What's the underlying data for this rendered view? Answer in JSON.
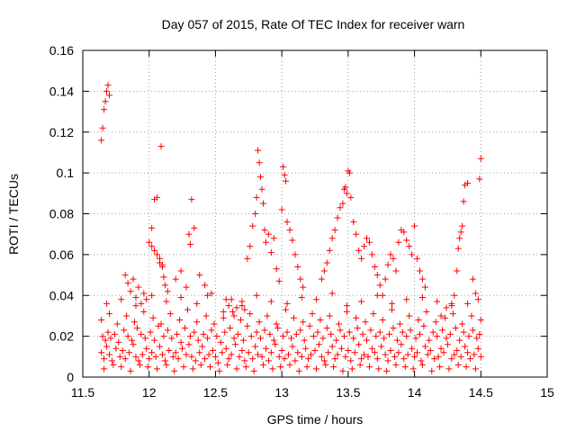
{
  "chart_data": {
    "type": "scatter",
    "title": "Day 057 of 2015, Rate Of TEC Index for receiver warn",
    "xlabel": "GPS time / hours",
    "ylabel": "ROTI / TECUs",
    "xlim": [
      11.5,
      15
    ],
    "ylim": [
      0,
      0.16
    ],
    "xticks": [
      11.5,
      12,
      12.5,
      13,
      13.5,
      14,
      14.5,
      15
    ],
    "xtick_labels": [
      "11.5",
      "12",
      "12.5",
      "13",
      "13.5",
      "14",
      "14.5",
      "15"
    ],
    "yticks": [
      0,
      0.02,
      0.04,
      0.06,
      0.08,
      0.1,
      0.12,
      0.14,
      0.16
    ],
    "ytick_labels": [
      "0",
      "0.02",
      "0.04",
      "0.06",
      "0.08",
      "0.1",
      "0.12",
      "0.14",
      "0.16"
    ],
    "grid": true,
    "marker": "+",
    "series": [
      {
        "name": "ROTI",
        "color": "#ff0000",
        "x": [
          11.64,
          11.66,
          11.68,
          11.7,
          11.72,
          11.75,
          11.78,
          11.8,
          11.82,
          11.85,
          11.88,
          11.9,
          11.92,
          11.95,
          11.98,
          12.0,
          12.02,
          12.05,
          12.08,
          12.1,
          12.12,
          12.15,
          12.18,
          12.2,
          12.22,
          12.25,
          12.28,
          12.3,
          12.32,
          12.35,
          12.38,
          12.4,
          12.42,
          12.45,
          12.48,
          12.5,
          12.52,
          12.55,
          12.58,
          12.6,
          12.62,
          12.65,
          12.68,
          12.7,
          12.72,
          12.75,
          12.78,
          12.8,
          12.82,
          12.85,
          12.88,
          12.9,
          12.92,
          12.95,
          12.98,
          13.0,
          13.02,
          13.05,
          13.08,
          13.1,
          13.12,
          13.15,
          13.18,
          13.2,
          13.22,
          13.25,
          13.28,
          13.3,
          13.32,
          13.35,
          13.38,
          13.4,
          13.42,
          13.45,
          13.48,
          13.5,
          13.52,
          13.55,
          13.58,
          13.6,
          13.62,
          13.65,
          13.68,
          13.7,
          13.72,
          13.75,
          13.78,
          13.8,
          13.82,
          13.85,
          13.88,
          13.9,
          13.92,
          13.95,
          13.98,
          14.0,
          14.02,
          14.05,
          14.08,
          14.1,
          14.12,
          14.15,
          14.18,
          14.2,
          14.22,
          14.25,
          14.28,
          14.3,
          14.32,
          14.35,
          14.38,
          14.4,
          14.42,
          14.45,
          14.48,
          14.5,
          11.65,
          11.67,
          11.69,
          11.71,
          11.74,
          11.77,
          11.81,
          11.84,
          11.87,
          11.91,
          11.94,
          11.97,
          12.01,
          12.04,
          12.07,
          12.11,
          12.14,
          12.17,
          12.21,
          12.24,
          12.27,
          12.31,
          12.34,
          12.37,
          12.41,
          12.44,
          12.47,
          12.51,
          12.54,
          12.57,
          12.61,
          12.64,
          12.67,
          12.71,
          12.74,
          12.77,
          12.81,
          12.84,
          12.87,
          12.91,
          12.94,
          12.97,
          13.01,
          13.04,
          13.07,
          13.11,
          13.14,
          13.17,
          13.21,
          13.24,
          13.27,
          13.31,
          13.34,
          13.37,
          13.41,
          13.44,
          13.47,
          13.51,
          13.54,
          13.57,
          13.61,
          13.64,
          13.67,
          13.71,
          13.74,
          13.77,
          13.81,
          13.84,
          13.87,
          13.91,
          13.94,
          13.97,
          14.01,
          14.04,
          14.07,
          14.11,
          14.14,
          14.17,
          14.21,
          14.24,
          14.27,
          14.31,
          14.34,
          14.37,
          14.41,
          14.44,
          14.47,
          14.49,
          11.64,
          11.7,
          11.76,
          11.83,
          11.89,
          11.96,
          12.03,
          12.09,
          12.16,
          12.23,
          12.29,
          12.36,
          12.43,
          12.49,
          12.56,
          12.63,
          12.69,
          12.76,
          12.83,
          12.89,
          12.96,
          13.03,
          13.09,
          13.16,
          13.23,
          13.29,
          13.36,
          13.43,
          13.49,
          13.56,
          13.63,
          13.69,
          13.76,
          13.83,
          13.89,
          13.96,
          14.03,
          14.09,
          14.16,
          14.23,
          14.29,
          14.36,
          14.43,
          14.5,
          11.66,
          11.73,
          11.79,
          11.86,
          11.93,
          11.99,
          12.06,
          12.13,
          12.19,
          12.26,
          12.33,
          12.39,
          12.46,
          12.53,
          12.59,
          12.66,
          12.73,
          12.79,
          12.86,
          12.93,
          12.99,
          13.06,
          13.13,
          13.19,
          13.26,
          13.33,
          13.39,
          13.46,
          13.53,
          13.59,
          13.66,
          13.73,
          13.79,
          13.86,
          13.93,
          13.99,
          14.06,
          14.13,
          14.19,
          14.26,
          14.33,
          14.39,
          14.46,
          11.68,
          11.79,
          11.9,
          12.02,
          12.13,
          12.24,
          12.36,
          12.47,
          12.58,
          12.7,
          12.81,
          12.92,
          13.04,
          13.15,
          13.26,
          13.38,
          13.49,
          13.6,
          13.72,
          13.83,
          13.94,
          14.06,
          14.17,
          14.28,
          14.4,
          11.64,
          11.65,
          11.66,
          11.67,
          11.68,
          11.69,
          11.7,
          11.82,
          11.84,
          11.86,
          11.88,
          11.9,
          11.92,
          11.94,
          11.96,
          11.98,
          12.0,
          12.02,
          12.04,
          12.06,
          12.08,
          12.1,
          12.02,
          12.04,
          12.06,
          12.08,
          12.09,
          12.1,
          12.11,
          12.12,
          12.14,
          12.2,
          12.24,
          12.28,
          12.3,
          12.31,
          12.32,
          12.34,
          12.38,
          12.42,
          12.44,
          12.56,
          12.6,
          12.62,
          12.64,
          12.66,
          12.7,
          12.72,
          12.74,
          12.76,
          12.78,
          12.8,
          12.81,
          12.82,
          12.83,
          12.84,
          12.85,
          12.86,
          12.87,
          12.88,
          12.9,
          12.92,
          12.94,
          12.96,
          12.98,
          13.0,
          13.01,
          13.02,
          13.03,
          13.04,
          13.06,
          13.08,
          13.1,
          13.12,
          13.14,
          13.16,
          13.3,
          13.32,
          13.34,
          13.36,
          13.38,
          13.4,
          13.42,
          13.44,
          13.46,
          13.47,
          13.48,
          13.49,
          13.5,
          13.51,
          13.52,
          13.54,
          13.56,
          13.58,
          13.6,
          13.62,
          13.64,
          13.66,
          13.68,
          13.7,
          13.72,
          13.74,
          13.76,
          13.78,
          13.8,
          13.82,
          13.84,
          13.86,
          13.88,
          13.9,
          13.92,
          13.94,
          13.96,
          13.98,
          14.0,
          14.02,
          14.04,
          14.06,
          14.08,
          14.2,
          14.24,
          14.28,
          14.3,
          14.32,
          14.33,
          14.34,
          14.35,
          14.36,
          14.37,
          14.38,
          14.4,
          14.44,
          14.46,
          14.48,
          14.49,
          14.5
        ],
        "y": [
          0.012,
          0.009,
          0.015,
          0.011,
          0.008,
          0.014,
          0.01,
          0.013,
          0.009,
          0.012,
          0.016,
          0.01,
          0.008,
          0.011,
          0.014,
          0.009,
          0.012,
          0.01,
          0.015,
          0.011,
          0.008,
          0.013,
          0.01,
          0.012,
          0.009,
          0.014,
          0.011,
          0.016,
          0.01,
          0.008,
          0.012,
          0.015,
          0.009,
          0.011,
          0.013,
          0.01,
          0.007,
          0.012,
          0.014,
          0.009,
          0.011,
          0.016,
          0.01,
          0.013,
          0.008,
          0.012,
          0.009,
          0.015,
          0.011,
          0.01,
          0.014,
          0.008,
          0.012,
          0.016,
          0.01,
          0.013,
          0.009,
          0.011,
          0.015,
          0.008,
          0.012,
          0.01,
          0.014,
          0.009,
          0.011,
          0.013,
          0.016,
          0.01,
          0.008,
          0.012,
          0.015,
          0.009,
          0.011,
          0.014,
          0.01,
          0.013,
          0.008,
          0.012,
          0.016,
          0.009,
          0.011,
          0.01,
          0.014,
          0.012,
          0.009,
          0.015,
          0.011,
          0.008,
          0.013,
          0.01,
          0.012,
          0.016,
          0.009,
          0.011,
          0.014,
          0.01,
          0.012,
          0.008,
          0.015,
          0.011,
          0.013,
          0.009,
          0.01,
          0.014,
          0.012,
          0.016,
          0.009,
          0.011,
          0.013,
          0.01,
          0.015,
          0.012,
          0.009,
          0.011,
          0.014,
          0.01,
          0.02,
          0.018,
          0.022,
          0.019,
          0.021,
          0.017,
          0.023,
          0.02,
          0.018,
          0.024,
          0.021,
          0.019,
          0.022,
          0.018,
          0.025,
          0.02,
          0.023,
          0.019,
          0.021,
          0.017,
          0.024,
          0.02,
          0.022,
          0.018,
          0.021,
          0.019,
          0.023,
          0.02,
          0.017,
          0.022,
          0.024,
          0.019,
          0.021,
          0.018,
          0.025,
          0.02,
          0.022,
          0.019,
          0.023,
          0.021,
          0.018,
          0.024,
          0.02,
          0.022,
          0.019,
          0.021,
          0.023,
          0.018,
          0.025,
          0.02,
          0.022,
          0.019,
          0.024,
          0.021,
          0.018,
          0.023,
          0.02,
          0.022,
          0.019,
          0.024,
          0.021,
          0.018,
          0.023,
          0.02,
          0.022,
          0.019,
          0.021,
          0.024,
          0.018,
          0.022,
          0.02,
          0.023,
          0.019,
          0.021,
          0.025,
          0.018,
          0.022,
          0.02,
          0.023,
          0.019,
          0.021,
          0.024,
          0.018,
          0.022,
          0.02,
          0.023,
          0.019,
          0.021,
          0.028,
          0.031,
          0.026,
          0.03,
          0.027,
          0.032,
          0.029,
          0.026,
          0.031,
          0.028,
          0.033,
          0.027,
          0.03,
          0.026,
          0.029,
          0.032,
          0.028,
          0.031,
          0.027,
          0.03,
          0.026,
          0.033,
          0.029,
          0.027,
          0.031,
          0.028,
          0.03,
          0.026,
          0.032,
          0.029,
          0.027,
          0.031,
          0.028,
          0.033,
          0.026,
          0.03,
          0.028,
          0.032,
          0.027,
          0.029,
          0.031,
          0.026,
          0.03,
          0.028,
          0.004,
          0.006,
          0.005,
          0.003,
          0.006,
          0.005,
          0.004,
          0.006,
          0.003,
          0.005,
          0.004,
          0.006,
          0.005,
          0.003,
          0.006,
          0.004,
          0.005,
          0.003,
          0.006,
          0.004,
          0.005,
          0.006,
          0.003,
          0.005,
          0.004,
          0.006,
          0.005,
          0.003,
          0.004,
          0.006,
          0.005,
          0.004,
          0.003,
          0.006,
          0.005,
          0.004,
          0.006,
          0.003,
          0.005,
          0.004,
          0.006,
          0.005,
          0.004,
          0.036,
          0.038,
          0.035,
          0.04,
          0.037,
          0.039,
          0.036,
          0.041,
          0.038,
          0.035,
          0.04,
          0.037,
          0.036,
          0.039,
          0.038,
          0.041,
          0.035,
          0.037,
          0.04,
          0.036,
          0.038,
          0.039,
          0.037,
          0.035,
          0.036,
          0.116,
          0.122,
          0.131,
          0.135,
          0.14,
          0.143,
          0.138,
          0.05,
          0.046,
          0.042,
          0.048,
          0.039,
          0.044,
          0.036,
          0.041,
          0.038,
          0.066,
          0.064,
          0.062,
          0.06,
          0.058,
          0.055,
          0.073,
          0.087,
          0.088,
          0.056,
          0.113,
          0.054,
          0.049,
          0.045,
          0.042,
          0.048,
          0.052,
          0.044,
          0.07,
          0.065,
          0.087,
          0.073,
          0.05,
          0.045,
          0.04,
          0.032,
          0.035,
          0.038,
          0.03,
          0.034,
          0.037,
          0.033,
          0.058,
          0.064,
          0.074,
          0.08,
          0.088,
          0.111,
          0.105,
          0.098,
          0.092,
          0.085,
          0.072,
          0.066,
          0.07,
          0.061,
          0.068,
          0.053,
          0.047,
          0.082,
          0.103,
          0.099,
          0.096,
          0.076,
          0.072,
          0.067,
          0.06,
          0.054,
          0.048,
          0.044,
          0.048,
          0.052,
          0.056,
          0.062,
          0.068,
          0.072,
          0.078,
          0.083,
          0.085,
          0.092,
          0.093,
          0.09,
          0.101,
          0.1,
          0.088,
          0.076,
          0.07,
          0.062,
          0.058,
          0.064,
          0.068,
          0.066,
          0.06,
          0.054,
          0.05,
          0.045,
          0.04,
          0.048,
          0.055,
          0.06,
          0.058,
          0.052,
          0.066,
          0.072,
          0.071,
          0.067,
          0.064,
          0.06,
          0.074,
          0.058,
          0.052,
          0.048,
          0.044,
          0.03,
          0.034,
          0.036,
          0.04,
          0.052,
          0.063,
          0.068,
          0.071,
          0.074,
          0.086,
          0.094,
          0.095,
          0.048,
          0.041,
          0.038,
          0.097,
          0.107
        ]
      }
    ]
  }
}
